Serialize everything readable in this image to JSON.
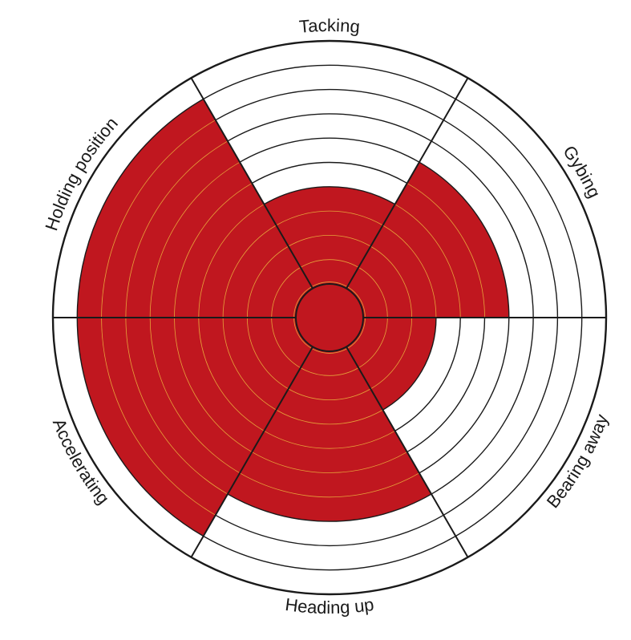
{
  "chart_data": {
    "type": "radial",
    "rings": 10,
    "segments": [
      {
        "label": "Tacking",
        "value": 4
      },
      {
        "label": "Gybing",
        "value": 6
      },
      {
        "label": "Bearing away",
        "value": 3
      },
      {
        "label": "Heading up",
        "value": 7
      },
      {
        "label": "Accelerating",
        "value": 9
      },
      {
        "label": "Holding position",
        "value": 9
      }
    ],
    "fill_color": "#c0171f",
    "line_color": "#1a1a1a",
    "ring_line_on_fill": "#e6a33a"
  }
}
